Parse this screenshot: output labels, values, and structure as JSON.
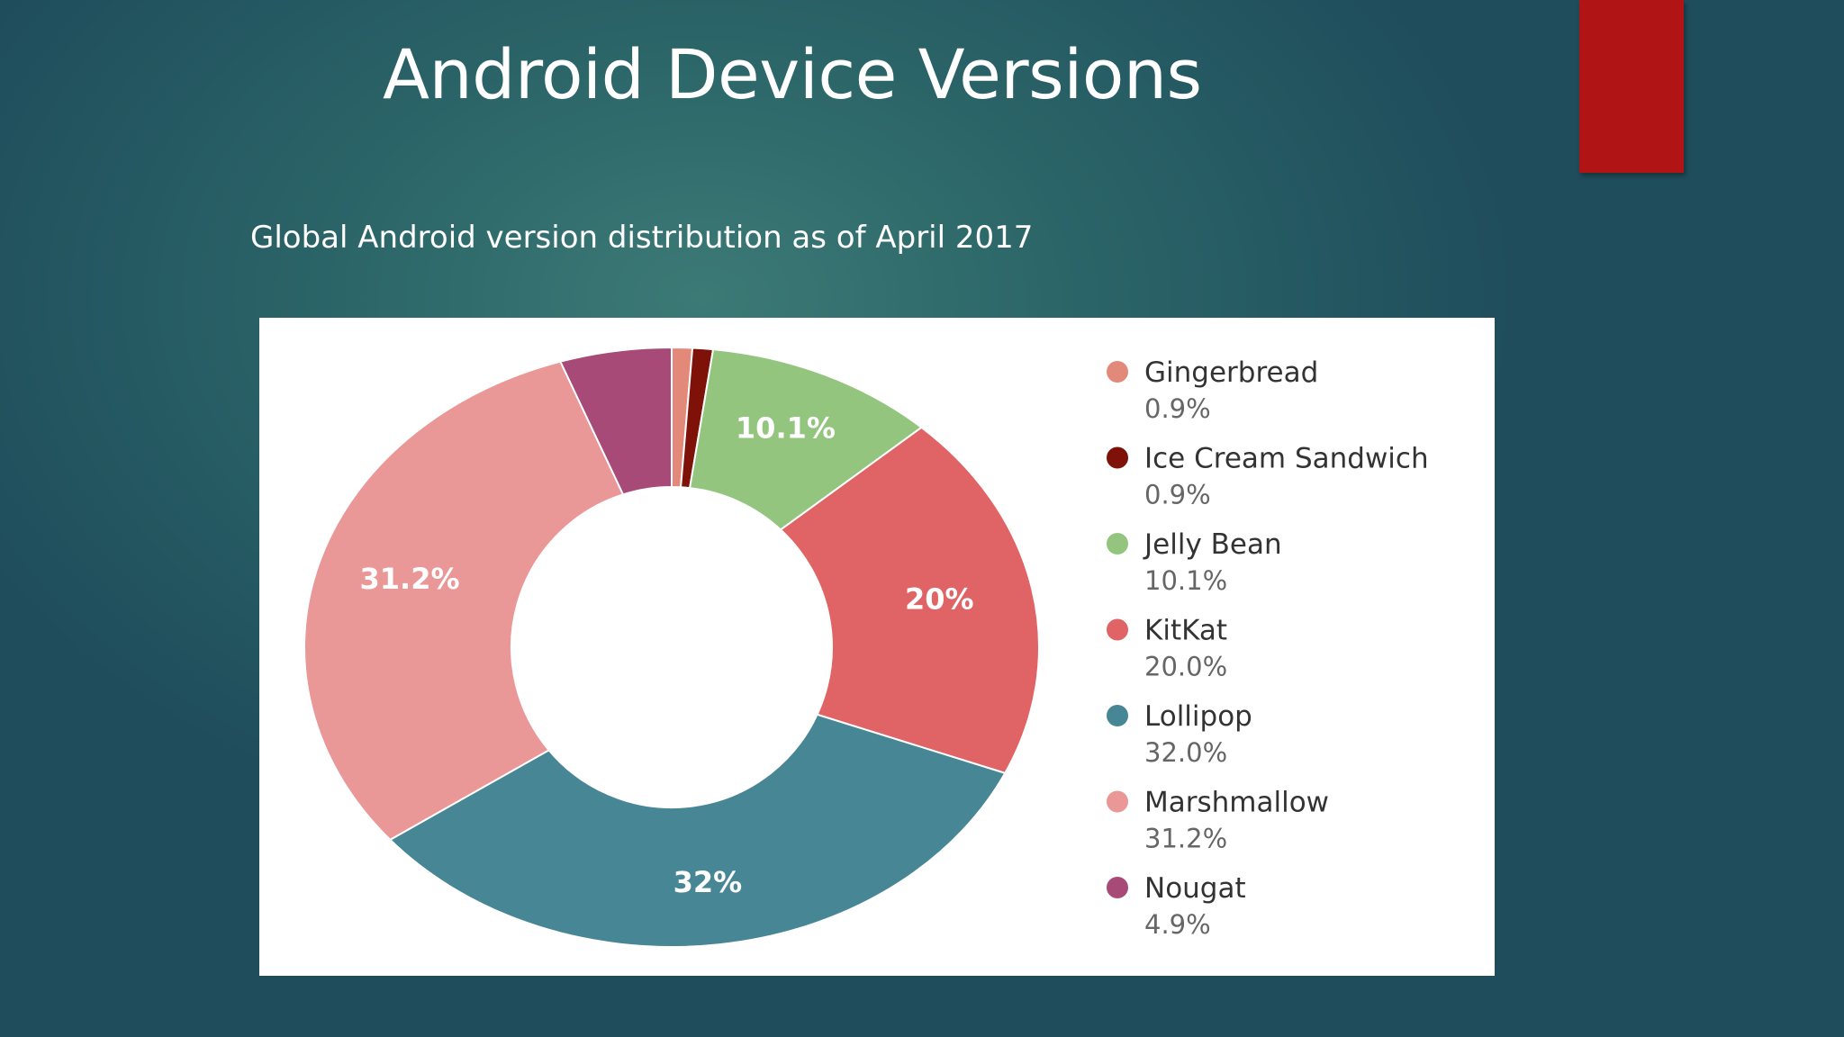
{
  "slide": {
    "title": "Android Device Versions",
    "subtitle": "Global Android version distribution as of April 2017",
    "accent_color": "#b11414"
  },
  "chart_data": {
    "type": "pie",
    "style": "donut",
    "legend_position": "right",
    "slices": [
      {
        "name": "Gingerbread",
        "value": 0.9,
        "legend_value": "0.9%",
        "slice_label": "",
        "color": "#e3897a"
      },
      {
        "name": "Ice Cream Sandwich",
        "value": 0.9,
        "legend_value": "0.9%",
        "slice_label": "",
        "color": "#7e1208"
      },
      {
        "name": "Jelly Bean",
        "value": 10.1,
        "legend_value": "10.1%",
        "slice_label": "10.1%",
        "color": "#93c57e"
      },
      {
        "name": "KitKat",
        "value": 20.0,
        "legend_value": "20.0%",
        "slice_label": "20%",
        "color": "#e06466"
      },
      {
        "name": "Lollipop",
        "value": 32.0,
        "legend_value": "32.0%",
        "slice_label": "32%",
        "color": "#478694"
      },
      {
        "name": "Marshmallow",
        "value": 31.2,
        "legend_value": "31.2%",
        "slice_label": "31.2%",
        "color": "#ea9797"
      },
      {
        "name": "Nougat",
        "value": 4.9,
        "legend_value": "4.9%",
        "slice_label": "",
        "color": "#a84a78"
      }
    ]
  }
}
